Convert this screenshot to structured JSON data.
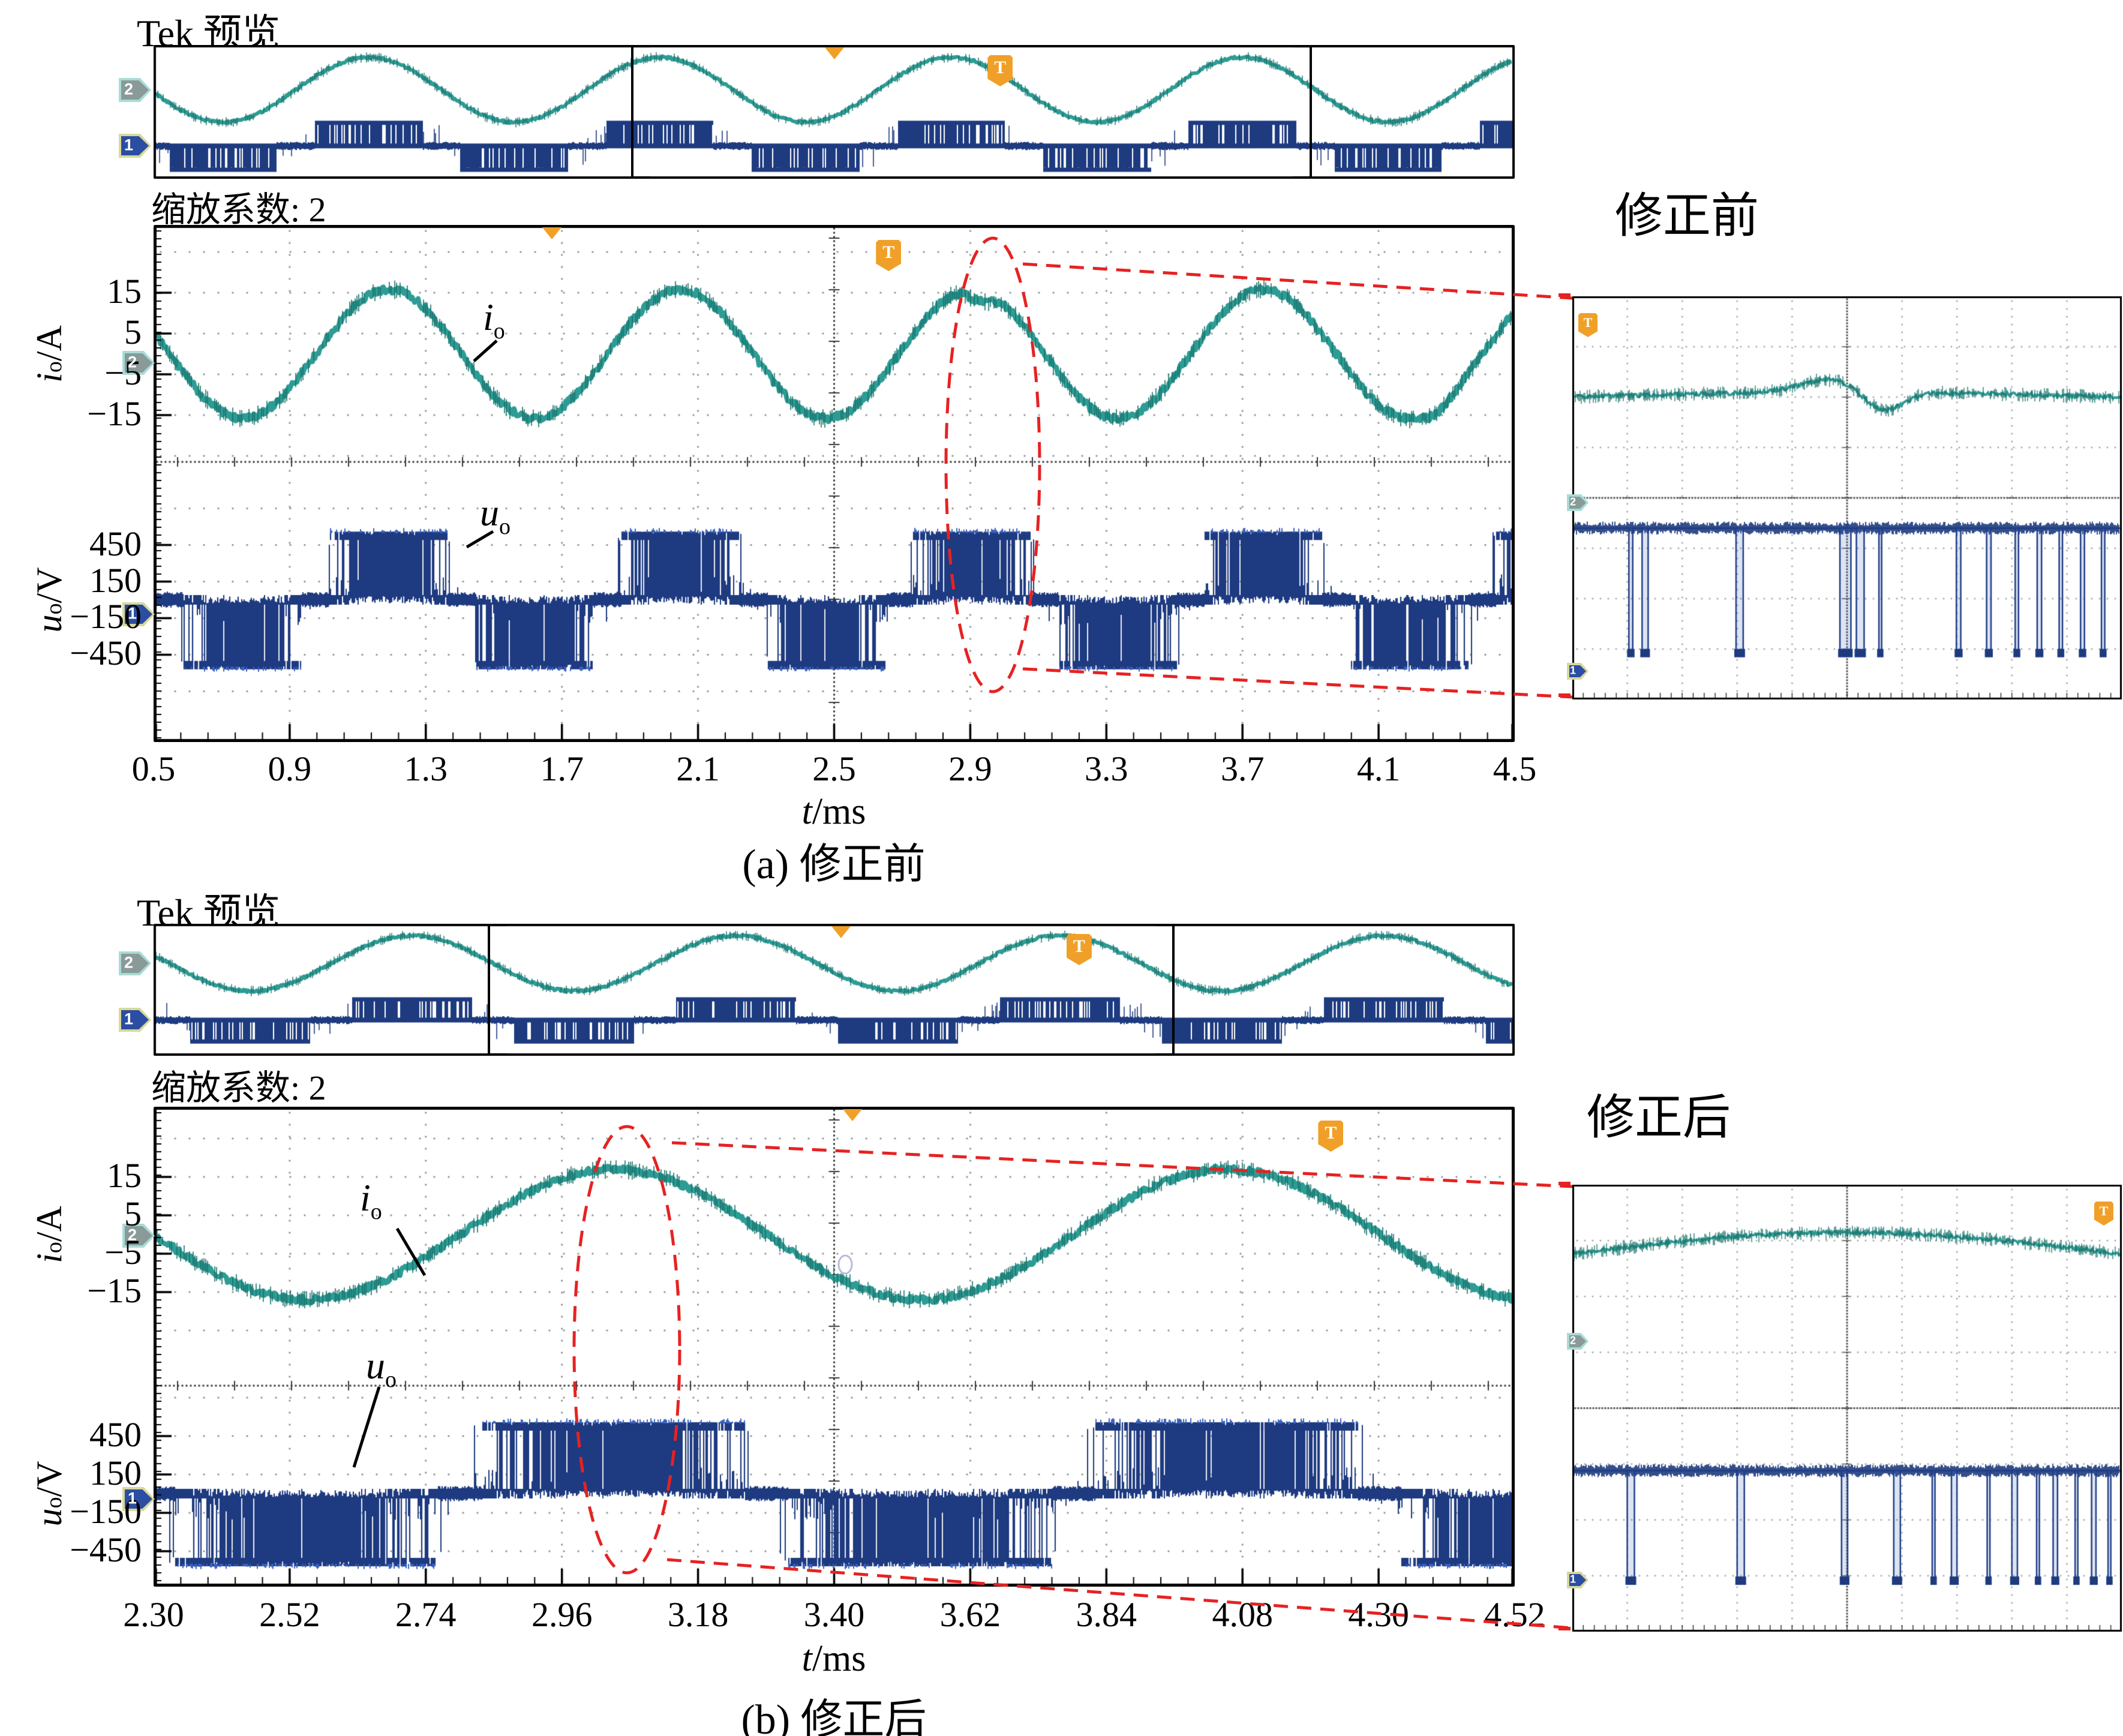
{
  "figure": {
    "kind": "oscilloscope-waveform-figure",
    "language": "zh-CN"
  },
  "colors": {
    "current_trace": "#2D9C94",
    "current_fuzz": "#17706A",
    "voltage_trace": "#1E3B80",
    "voltage_light": "#3B63BE",
    "trigger_orange": "#F0A028",
    "highlight_red": "#E62222",
    "grid_dot": "#8C9196",
    "grid_dense": "#3A3A3A",
    "ch2_fill": "#8A9A98",
    "ch2_border": "#A8DCD6",
    "ch1_fill": "#2B4EA2",
    "ch1_border": "#D8D89A"
  },
  "channel_markers": {
    "ch1_label": "1",
    "ch2_label": "2"
  },
  "trigger_flag_label": "T",
  "panels": [
    {
      "preview_title": "Tek 预览",
      "zoom_factor_label": "缩放系数: 2",
      "caption": "(a) 修正前",
      "inset_title": "修正前",
      "x_axis_title": {
        "var": "t",
        "unit": "/ms"
      },
      "current_axis_title": {
        "var": "i",
        "sub": "o",
        "unit": "/A"
      },
      "voltage_axis_title": {
        "var": "u",
        "sub": "o",
        "unit": "/V"
      },
      "current_annotation": {
        "var": "i",
        "sub": "o"
      },
      "voltage_annotation": {
        "var": "u",
        "sub": "o"
      }
    },
    {
      "preview_title": "Tek 预览",
      "zoom_factor_label": "缩放系数: 2",
      "caption": "(b) 修正后",
      "inset_title": "修正后",
      "x_axis_title": {
        "var": "t",
        "unit": "/ms"
      },
      "current_axis_title": {
        "var": "i",
        "sub": "o",
        "unit": "/A"
      },
      "voltage_axis_title": {
        "var": "u",
        "sub": "o",
        "unit": "/V"
      },
      "current_annotation": {
        "var": "i",
        "sub": "o"
      },
      "voltage_annotation": {
        "var": "u",
        "sub": "o"
      }
    }
  ],
  "chart_data": [
    {
      "type": "line",
      "panel": "a",
      "caption": "(a) 修正前",
      "x": {
        "label": "t/ms",
        "min": 0.5,
        "max": 4.5,
        "tick_labels": [
          "0.5",
          "0.9",
          "1.3",
          "1.7",
          "2.1",
          "2.5",
          "2.9",
          "3.3",
          "3.7",
          "4.1",
          "4.5"
        ],
        "tick_values": [
          0.5,
          0.9,
          1.3,
          1.7,
          2.1,
          2.5,
          2.9,
          3.3,
          3.7,
          4.1,
          4.5
        ]
      },
      "current": {
        "name": "io",
        "unit": "A",
        "tick_labels": [
          "15",
          "5",
          "−5",
          "−15"
        ],
        "tick_values": [
          15,
          5,
          -5,
          -15
        ],
        "amplitude_A": 15.8,
        "period_ms": 0.857,
        "peak_at_ms": 2.905,
        "noise_A": 0.9,
        "glitches_ms": [
          [
            2.93,
            2.6
          ],
          [
            4.27,
            1.4
          ]
        ]
      },
      "voltage": {
        "name": "uo",
        "unit": "V",
        "tick_labels": [
          "450",
          "150",
          "−150",
          "−450"
        ],
        "tick_values": [
          450,
          150,
          -150,
          -450
        ],
        "block_level_V": 530,
        "mid_level_V": 150,
        "period_ms": 0.857,
        "peak_at_ms": 2.905,
        "zero_band_threshold": 0.3
      },
      "trigger": {
        "arrow_at_ms": 1.67,
        "flag_at_ms": 2.66
      },
      "highlight": {
        "ellipse_center_ms": 2.965
      },
      "preview": {
        "first_peak_frac": 0.158,
        "period_frac": 0.214,
        "window_frac": [
          0.351,
          0.851
        ],
        "trigger_arrow_frac": 0.5,
        "trigger_flag_frac": 0.622
      },
      "inset": {
        "trigger_corner": "top-left",
        "teal_base_frac": 0.25,
        "teal_arc_amp": 0.012,
        "teal_bump": {
          "at": 0.47,
          "amp": -0.032,
          "sigma": 0.055
        },
        "teal_dip": {
          "at": 0.565,
          "amp": 0.05,
          "sigma": 0.035
        },
        "pwm_high_frac": 0.575,
        "pwm_low_frac": 0.885,
        "pulses": [
          [
            0.103,
            0.007
          ],
          [
            0.127,
            0.011
          ],
          [
            0.298,
            0.013
          ],
          [
            0.487,
            0.02
          ],
          [
            0.517,
            0.014
          ],
          [
            0.558,
            0.005
          ],
          [
            0.699,
            0.008
          ],
          [
            0.754,
            0.008
          ],
          [
            0.806,
            0.006
          ],
          [
            0.846,
            0.008
          ],
          [
            0.886,
            0.006
          ],
          [
            0.925,
            0.007
          ],
          [
            0.963,
            0.006
          ]
        ]
      }
    },
    {
      "type": "line",
      "panel": "b",
      "caption": "(b) 修正后",
      "x": {
        "label": "t/ms",
        "min": 2.3,
        "max": 4.52,
        "tick_labels": [
          "2.30",
          "2.52",
          "2.74",
          "2.96",
          "3.18",
          "3.40",
          "3.62",
          "3.84",
          "4.08",
          "4.30",
          "4.52"
        ],
        "tick_values": [
          2.3,
          2.52,
          2.74,
          2.96,
          3.18,
          3.4,
          3.62,
          3.84,
          4.08,
          4.3,
          4.52
        ]
      },
      "current": {
        "name": "io",
        "unit": "A",
        "tick_labels": [
          "15",
          "5",
          "−5",
          "−15"
        ],
        "tick_values": [
          15,
          5,
          -5,
          -15
        ],
        "amplitude_A": 17.0,
        "period_ms": 1.0,
        "peak_at_ms": 3.05,
        "noise_A": 0.9,
        "glitches_ms": []
      },
      "voltage": {
        "name": "uo",
        "unit": "V",
        "tick_labels": [
          "450",
          "150",
          "−150",
          "−450"
        ],
        "tick_values": [
          450,
          150,
          -150,
          -450
        ],
        "block_level_V": 530,
        "mid_level_V": 150,
        "period_ms": 1.0,
        "peak_at_ms": 3.05,
        "zero_band_threshold": 0.22
      },
      "trigger": {
        "arrow_at_ms": 3.44,
        "flag_at_ms": 4.22
      },
      "highlight": {
        "ellipse_center_ms": 3.07
      },
      "preview": {
        "first_peak_frac": 0.19,
        "period_frac": 0.238,
        "window_frac": [
          0.2455,
          0.75
        ],
        "trigger_arrow_frac": 0.505,
        "trigger_flag_frac": 0.68
      },
      "inset": {
        "trigger_corner": "top-right",
        "teal_base_frac": 0.155,
        "teal_arc_amp": 0.048,
        "teal_bump": null,
        "teal_dip": null,
        "pwm_high_frac": 0.64,
        "pwm_low_frac": 0.886,
        "pulses": [
          [
            0.1,
            0.013
          ],
          [
            0.3,
            0.013
          ],
          [
            0.49,
            0.011
          ],
          [
            0.585,
            0.012
          ],
          [
            0.655,
            0.005
          ],
          [
            0.69,
            0.01
          ],
          [
            0.755,
            0.005
          ],
          [
            0.8,
            0.01
          ],
          [
            0.845,
            0.005
          ],
          [
            0.875,
            0.008
          ],
          [
            0.915,
            0.005
          ],
          [
            0.945,
            0.008
          ],
          [
            0.975,
            0.005
          ]
        ]
      }
    }
  ]
}
